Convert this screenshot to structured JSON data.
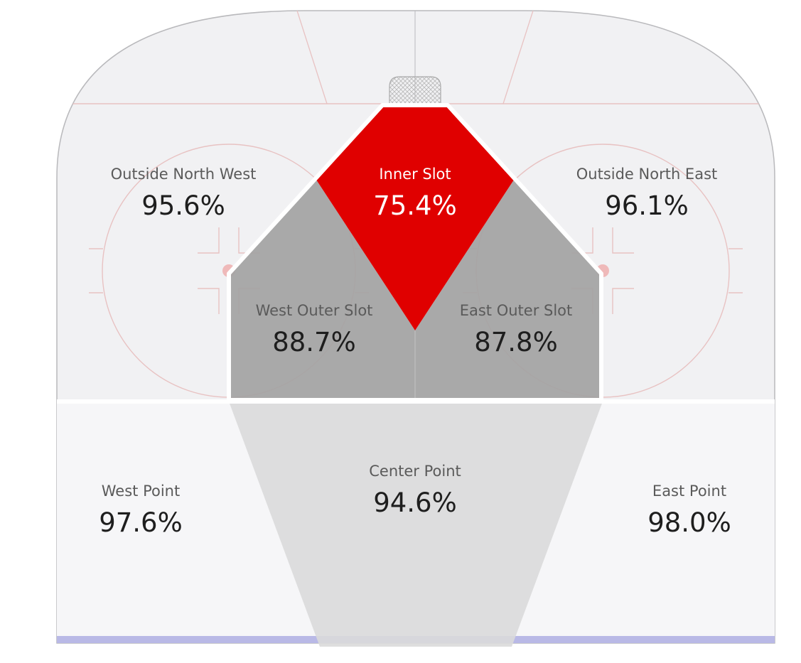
{
  "colors": {
    "ice": "#f1f1f3",
    "lower_ice": "#f6f6f8",
    "board_stroke": "#b9b9bc",
    "rink_line": "#e8c2c2",
    "net_fill": "#dcdcdc",
    "blue_line": "#b9b9e6",
    "highlight": "#e00000",
    "outer_slot": "#a3a3a3",
    "center_point": "#dadada",
    "zone_border": "#ffffff",
    "text_dark": "#1e1e1e",
    "text_label": "#5a5a5a",
    "text_on_highlight": "#ffffff"
  },
  "zones": [
    {
      "id": "inner-slot",
      "name": "Inner Slot",
      "value": "75.4%"
    },
    {
      "id": "outside-north-west",
      "name": "Outside North West",
      "value": "95.6%"
    },
    {
      "id": "outside-north-east",
      "name": "Outside North East",
      "value": "96.1%"
    },
    {
      "id": "west-outer-slot",
      "name": "West Outer Slot",
      "value": "88.7%"
    },
    {
      "id": "east-outer-slot",
      "name": "East Outer Slot",
      "value": "87.8%"
    },
    {
      "id": "center-point",
      "name": "Center Point",
      "value": "94.6%"
    },
    {
      "id": "west-point",
      "name": "West Point",
      "value": "97.6%"
    },
    {
      "id": "east-point",
      "name": "East Point",
      "value": "98.0%"
    }
  ]
}
